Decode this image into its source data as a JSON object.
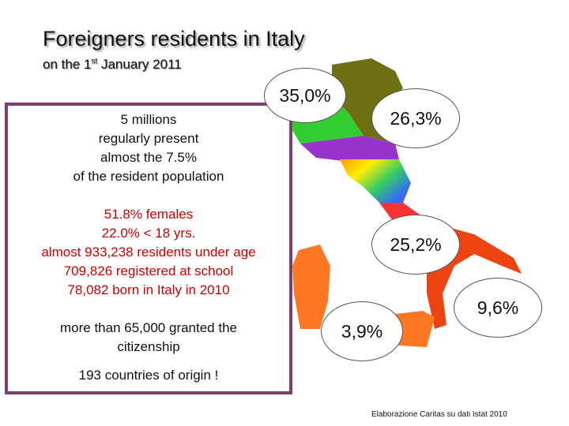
{
  "title": "Foreigners residents in Italy",
  "subtitle": {
    "prefix": "on the 1",
    "sup": "st",
    "suffix": " January 2011"
  },
  "info": {
    "block1": [
      "5 millions",
      "regularly present",
      "almost the 7.5%",
      "of the resident population"
    ],
    "block2": [
      "51.8% females",
      "22.0% < 18 yrs.",
      "almost 933,238 residents under age",
      "709,826 registered at school",
      "78,082 born in Italy in 2010"
    ],
    "block3": [
      "more than 65,000 granted the",
      "citizenship"
    ],
    "block4": "193 countries of origin !"
  },
  "regions": {
    "northwest": "35,0%",
    "northeast": "26,3%",
    "centre": "25,2%",
    "south": "9,6%",
    "islands": "3,9%"
  },
  "credit": "Elaborazione Caritas su dati Istat 2010",
  "colors": {
    "box_border": "#7d3f6b",
    "block2_text": "#cc0000"
  }
}
